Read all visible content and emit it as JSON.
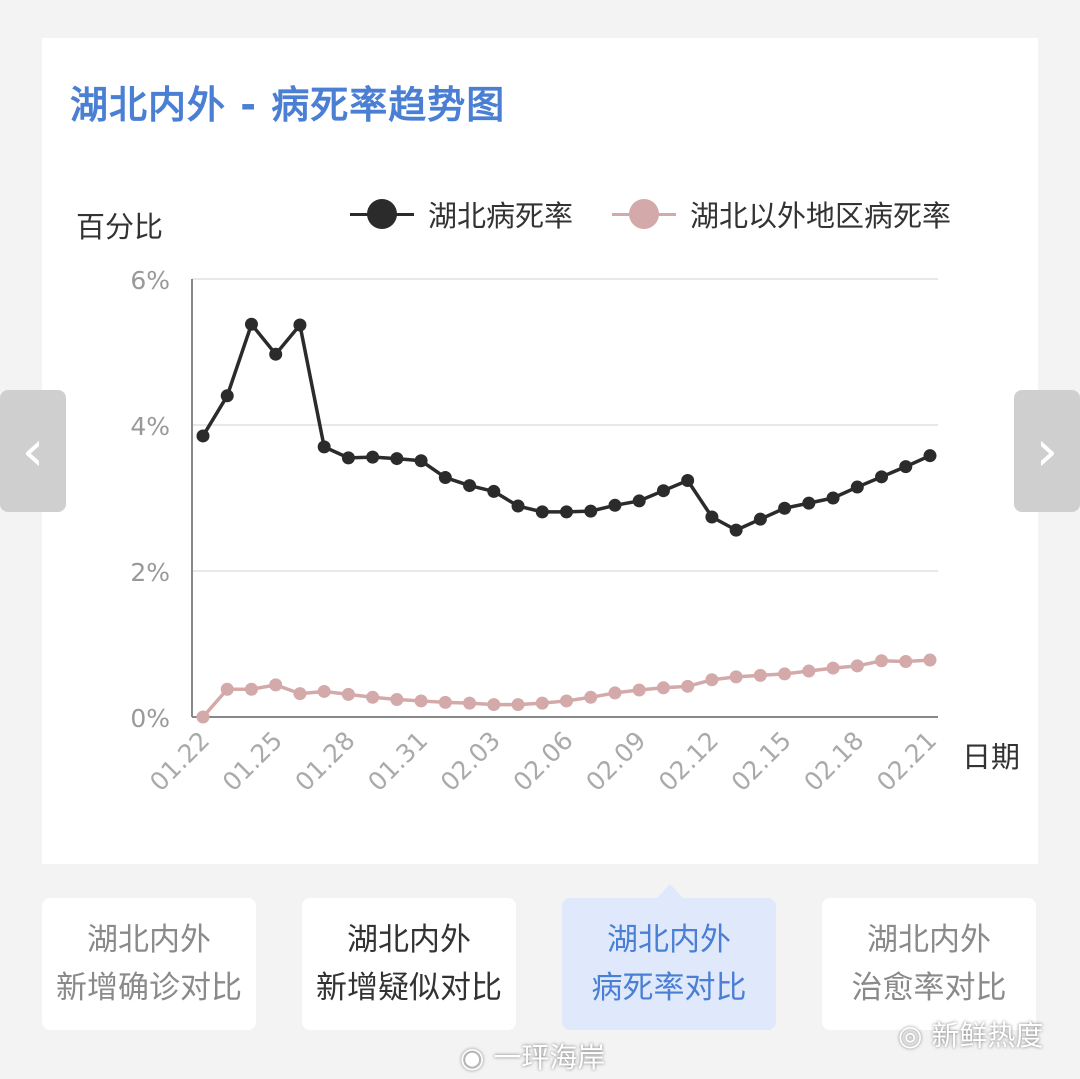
{
  "chart_data": {
    "type": "line",
    "title": "湖北内外 - 病死率趋势图",
    "ylabel": "百分比",
    "xlabel": "日期",
    "ylim": [
      0,
      6
    ],
    "yticks": [
      "0%",
      "2%",
      "4%",
      "6%"
    ],
    "grid": true,
    "legend_position": "top",
    "x_tick_labels": [
      "01.22",
      "01.25",
      "01.28",
      "01.31",
      "02.03",
      "02.06",
      "02.09",
      "02.12",
      "02.15",
      "02.18",
      "02.21"
    ],
    "x": [
      "01.22",
      "01.23",
      "01.24",
      "01.25",
      "01.26",
      "01.27",
      "01.28",
      "01.29",
      "01.30",
      "01.31",
      "02.01",
      "02.02",
      "02.03",
      "02.04",
      "02.05",
      "02.06",
      "02.07",
      "02.08",
      "02.09",
      "02.10",
      "02.11",
      "02.12",
      "02.13",
      "02.14",
      "02.15",
      "02.16",
      "02.17",
      "02.18",
      "02.19",
      "02.20",
      "02.21"
    ],
    "series": [
      {
        "name": "湖北病死率",
        "color": "#2b2b2b",
        "values": [
          3.85,
          4.4,
          5.38,
          4.97,
          5.37,
          3.7,
          3.55,
          3.56,
          3.54,
          3.51,
          3.28,
          3.17,
          3.09,
          2.89,
          2.81,
          2.81,
          2.82,
          2.9,
          2.96,
          3.1,
          3.24,
          2.74,
          2.56,
          2.71,
          2.86,
          2.93,
          3.0,
          3.15,
          3.29,
          3.43,
          3.58
        ]
      },
      {
        "name": "湖北以外地区病死率",
        "color": "#d4a9a9",
        "values": [
          0.0,
          0.38,
          0.38,
          0.44,
          0.32,
          0.35,
          0.31,
          0.27,
          0.24,
          0.22,
          0.2,
          0.19,
          0.17,
          0.17,
          0.19,
          0.22,
          0.27,
          0.33,
          0.37,
          0.4,
          0.42,
          0.51,
          0.55,
          0.57,
          0.59,
          0.63,
          0.67,
          0.7,
          0.77,
          0.76,
          0.78
        ]
      }
    ]
  },
  "nav": {
    "prev": "‹",
    "next": "›"
  },
  "tabs": [
    {
      "line1": "湖北内外",
      "line2": "新增确诊对比"
    },
    {
      "line1": "湖北内外",
      "line2": "新增疑似对比"
    },
    {
      "line1": "湖北内外",
      "line2": "病死率对比"
    },
    {
      "line1": "湖北内外",
      "line2": "治愈率对比"
    }
  ],
  "watermarks": {
    "wechat": "新鲜热度",
    "weibo": "一玶海岸"
  }
}
